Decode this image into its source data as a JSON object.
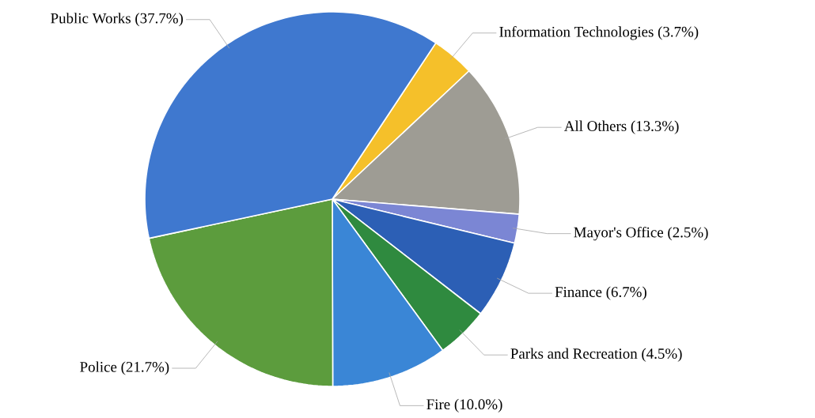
{
  "chart_data": {
    "type": "pie",
    "categories": [
      "Information Technologies",
      "All Others",
      "Mayor's Office",
      "Finance",
      "Parks and Recreation",
      "Fire",
      "Police",
      "Public Works"
    ],
    "values": [
      3.7,
      13.3,
      2.5,
      6.7,
      4.5,
      10.0,
      21.7,
      37.7
    ],
    "colors": [
      "#f5c02a",
      "#9e9c94",
      "#7b86d4",
      "#2c5fb5",
      "#2f8a3f",
      "#3a86d6",
      "#5c9c3d",
      "#3f78cf"
    ],
    "value_labels": [
      "(3.7%)",
      "(13.3%)",
      "(2.5%)",
      "(6.7%)",
      "(4.5%)",
      "(10.0%)",
      "(21.7%)",
      "(37.7%)"
    ]
  }
}
